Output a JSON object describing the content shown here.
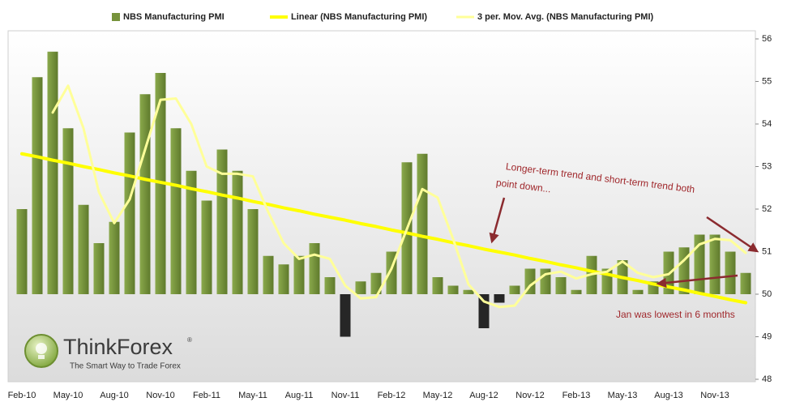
{
  "chart_data": {
    "type": "bar",
    "categories": [
      "Feb-10",
      null,
      null,
      "May-10",
      null,
      null,
      "Aug-10",
      null,
      null,
      "Nov-10",
      null,
      null,
      "Feb-11",
      null,
      null,
      "May-11",
      null,
      null,
      "Aug-11",
      null,
      null,
      "Nov-11",
      null,
      null,
      "Feb-12",
      null,
      null,
      "May-12",
      null,
      null,
      "Aug-12",
      null,
      null,
      "Nov-12",
      null,
      null,
      "Feb-13",
      null,
      null,
      "May-13",
      null,
      null,
      "Aug-13",
      null,
      null,
      "Nov-13",
      null,
      null
    ],
    "baseline": 50,
    "negative_color": "#262626",
    "series": [
      {
        "name": "NBS Manufacturing PMI",
        "type": "bar",
        "color": "#77933c",
        "values": [
          52.0,
          55.1,
          55.7,
          53.9,
          52.1,
          51.2,
          51.7,
          53.8,
          54.7,
          55.2,
          53.9,
          52.9,
          52.2,
          53.4,
          52.9,
          52.0,
          50.9,
          50.7,
          50.9,
          51.2,
          50.4,
          49.0,
          50.3,
          50.5,
          51.0,
          53.1,
          53.3,
          50.4,
          50.2,
          50.1,
          49.2,
          49.8,
          50.2,
          50.6,
          50.6,
          50.4,
          50.1,
          50.9,
          50.6,
          50.8,
          50.1,
          50.3,
          51.0,
          51.1,
          51.4,
          51.4,
          51.0,
          50.5
        ]
      },
      {
        "name": "Linear (NBS Manufacturing PMI)",
        "type": "line",
        "color": "#ffff00",
        "values": [
          53.3,
          53.23,
          53.15,
          53.08,
          53.0,
          52.93,
          52.85,
          52.78,
          52.7,
          52.63,
          52.56,
          52.48,
          52.41,
          52.33,
          52.26,
          52.18,
          52.11,
          52.03,
          51.96,
          51.88,
          51.81,
          51.74,
          51.66,
          51.59,
          51.51,
          51.44,
          51.36,
          51.29,
          51.21,
          51.14,
          51.06,
          50.99,
          50.92,
          50.84,
          50.77,
          50.69,
          50.62,
          50.54,
          50.47,
          50.39,
          50.32,
          50.24,
          50.17,
          50.1,
          50.02,
          49.95,
          49.87,
          49.8
        ]
      },
      {
        "name": "3 per. Mov. Avg. (NBS Manufacturing PMI)",
        "type": "line",
        "color": "#ffff99",
        "values": [
          null,
          null,
          54.27,
          54.9,
          53.9,
          52.4,
          51.67,
          52.23,
          53.4,
          54.57,
          54.6,
          54.0,
          53.0,
          52.83,
          52.83,
          52.77,
          51.93,
          51.2,
          50.83,
          50.93,
          50.83,
          50.2,
          49.9,
          49.93,
          50.6,
          51.53,
          52.47,
          52.27,
          51.3,
          50.23,
          49.83,
          49.7,
          49.73,
          50.2,
          50.47,
          50.53,
          50.37,
          50.47,
          50.53,
          50.77,
          50.5,
          50.4,
          50.47,
          50.8,
          51.17,
          51.3,
          51.27,
          50.97
        ]
      }
    ],
    "ylim": [
      48,
      56
    ],
    "yticks": [
      48,
      49,
      50,
      51,
      52,
      53,
      54,
      55,
      56
    ],
    "annotations": [
      "Longer-term trend and short-term trend both",
      "point down...",
      "Jan was lowest in 6 months"
    ],
    "watermark": {
      "name": "ThinkForex",
      "mark": "®",
      "tagline": "The Smart Way to Trade Forex"
    }
  }
}
